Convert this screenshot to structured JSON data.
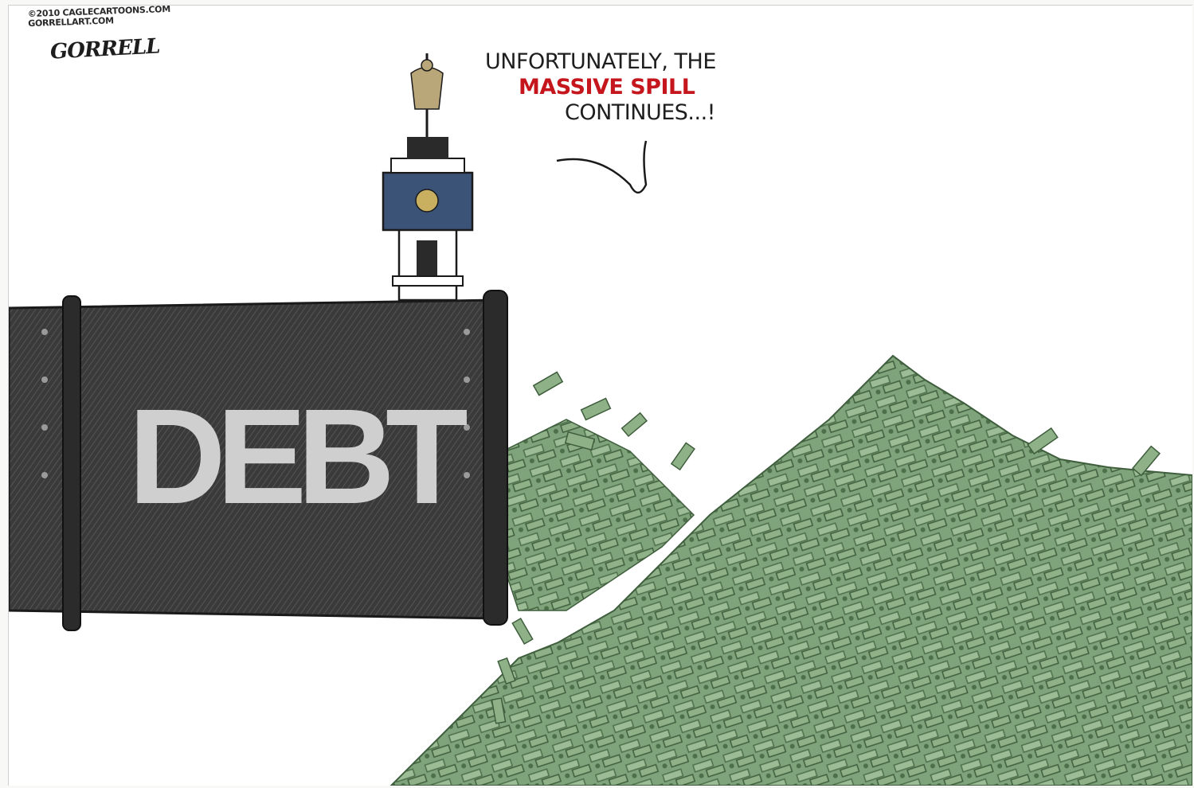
{
  "credit": {
    "line1": "©2010 CAGLECARTOONS.COM",
    "line2": "GORRELLART.COM",
    "signature": "GORRELL"
  },
  "caption": {
    "line1": "UNFORTUNATELY, THE",
    "line2": "MASSIVE SPILL",
    "line3": "CONTINUES...!"
  },
  "pipe": {
    "label": "DEBT"
  },
  "colors": {
    "pipe": "#3a3a3a",
    "money": "#7fa37a",
    "money_dark": "#4d6f4a",
    "caption_highlight": "#c4161c",
    "belltower_roof": "#3c5378"
  }
}
